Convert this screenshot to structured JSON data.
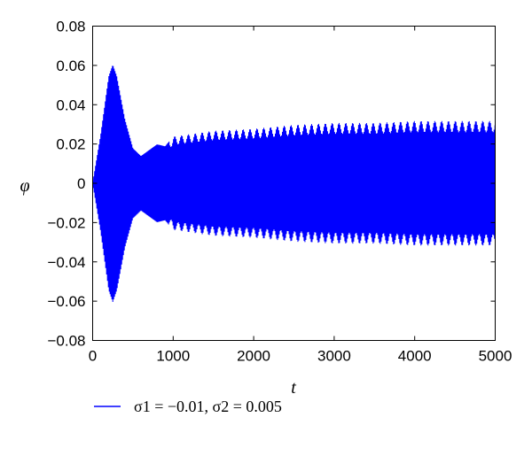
{
  "chart_data": {
    "type": "line",
    "xlabel": "t",
    "ylabel": "φ",
    "xlim": [
      0,
      5000
    ],
    "ylim": [
      -0.08,
      0.08
    ],
    "x_ticks": [
      "0",
      "1000",
      "2000",
      "3000",
      "4000",
      "5000"
    ],
    "y_ticks": [
      "0.08",
      "0.06",
      "0.04",
      "0.02",
      "0",
      "−0.02",
      "−0.04",
      "−0.06",
      "−0.08"
    ],
    "grid": false,
    "legend_position": "bottom-left",
    "series": [
      {
        "name": "σ1 = −0.01, σ2 = 0.005",
        "color": "#0000ff",
        "description_envelope_t": [
          0,
          100,
          200,
          250,
          300,
          400,
          500,
          600,
          700,
          800,
          900,
          1000,
          1500,
          2000,
          2500,
          3000,
          3500,
          4000,
          4500,
          5000
        ],
        "description_envelope_amp": [
          0.0,
          0.025,
          0.055,
          0.061,
          0.055,
          0.033,
          0.018,
          0.014,
          0.017,
          0.02,
          0.019,
          0.024,
          0.027,
          0.028,
          0.03,
          0.031,
          0.031,
          0.032,
          0.032,
          0.032
        ],
        "beat_period": 85
      }
    ]
  }
}
